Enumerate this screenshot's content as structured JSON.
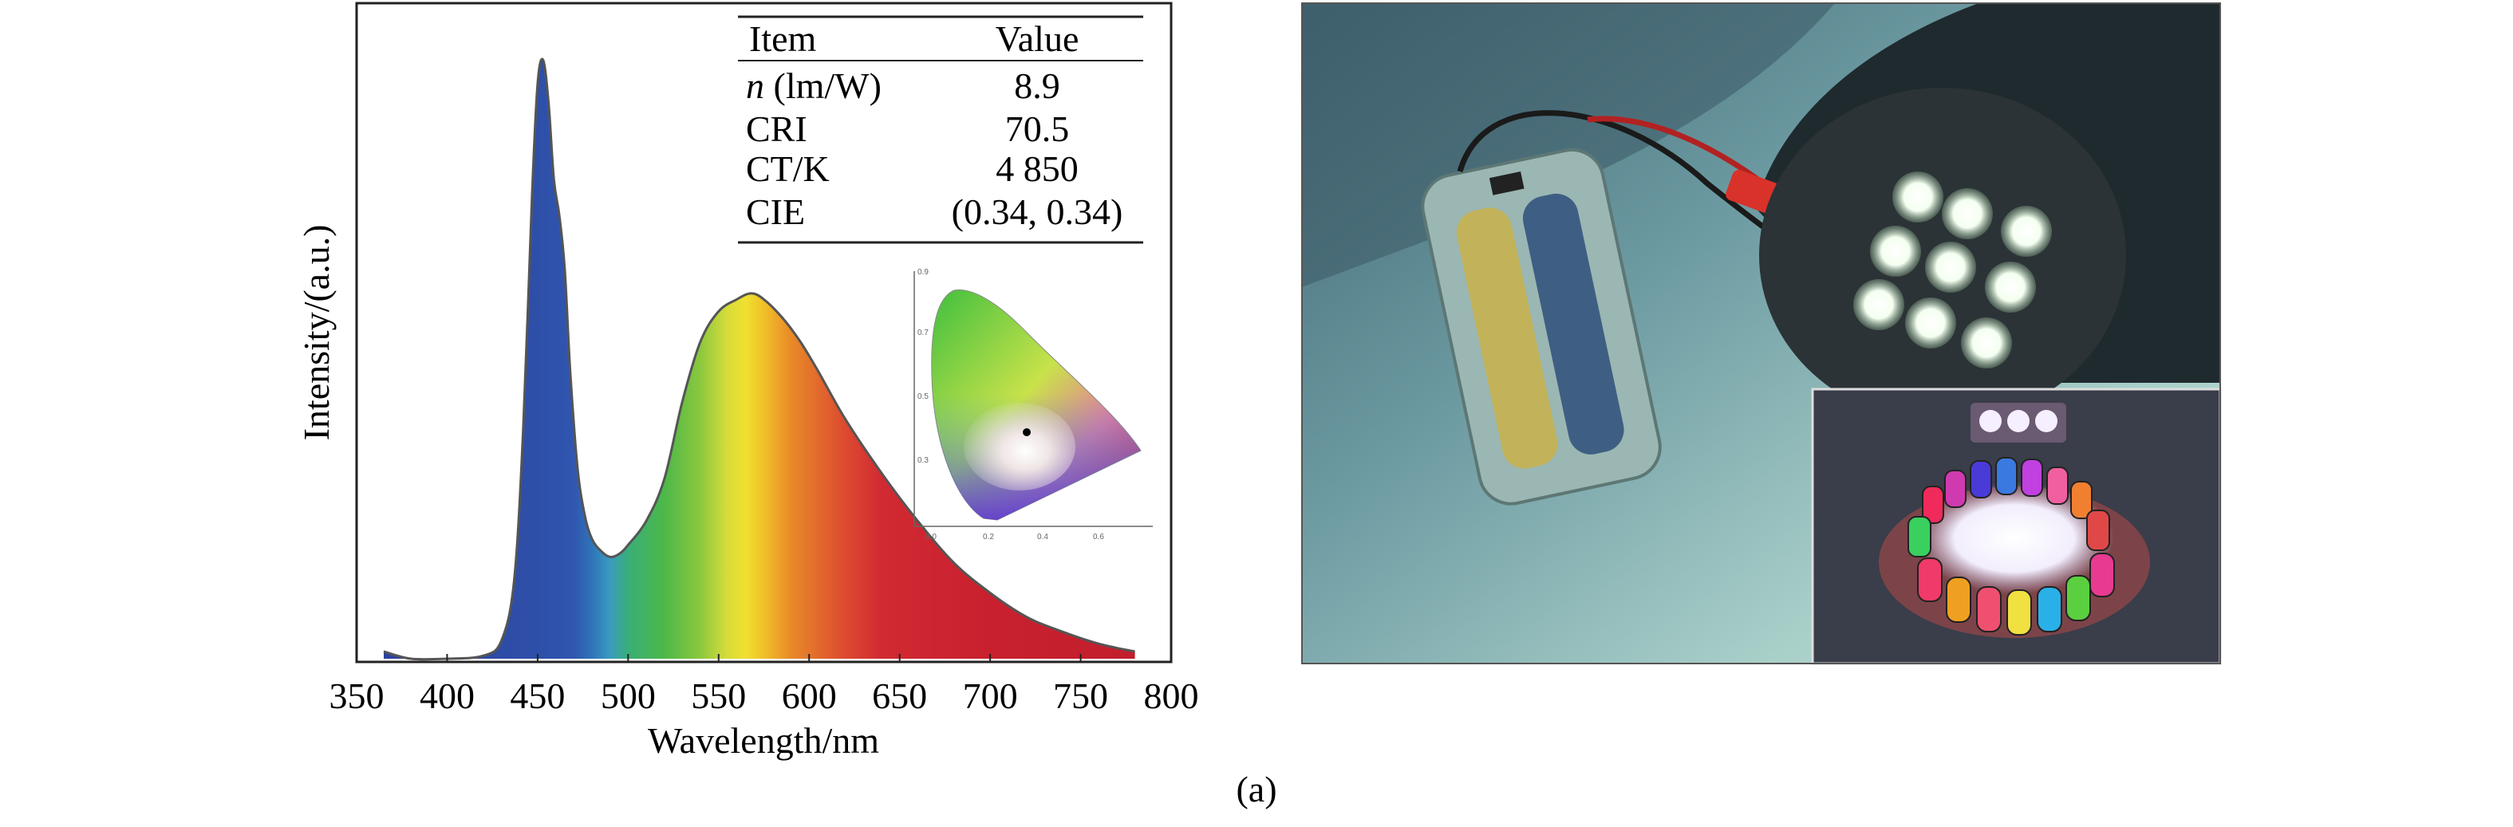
{
  "caption": "(a)",
  "chart_data": {
    "type": "area",
    "xlabel": "Wavelength/nm",
    "ylabel": "Intensity/(a.u.)",
    "xlim": [
      350,
      800
    ],
    "xticks": [
      "350",
      "400",
      "450",
      "500",
      "550",
      "600",
      "650",
      "700",
      "750",
      "800"
    ],
    "grid": false,
    "x": [
      365,
      380,
      400,
      420,
      430,
      437,
      442,
      447,
      450,
      453,
      456,
      459,
      462,
      465,
      468,
      472,
      476,
      480,
      485,
      490,
      495,
      500,
      510,
      520,
      530,
      540,
      550,
      560,
      568,
      575,
      585,
      595,
      605,
      620,
      640,
      660,
      680,
      700,
      720,
      740,
      760,
      780
    ],
    "y": [
      0.012,
      0.0,
      0.0,
      0.005,
      0.03,
      0.13,
      0.38,
      0.78,
      0.96,
      1.0,
      0.93,
      0.8,
      0.74,
      0.65,
      0.48,
      0.32,
      0.24,
      0.2,
      0.18,
      0.17,
      0.175,
      0.19,
      0.23,
      0.3,
      0.43,
      0.53,
      0.58,
      0.6,
      0.61,
      0.6,
      0.57,
      0.53,
      0.48,
      0.4,
      0.31,
      0.23,
      0.16,
      0.11,
      0.07,
      0.045,
      0.025,
      0.012
    ]
  },
  "table": {
    "headers": [
      "Item",
      "Value"
    ],
    "rows": [
      {
        "label_italic": "n",
        "label": " (lm/W)",
        "value": "8.9"
      },
      {
        "label_italic": "",
        "label": "CRI",
        "value": "70.5"
      },
      {
        "label_italic": "",
        "label": "CT/K",
        "value": "4 850"
      },
      {
        "label_italic": "",
        "label": "CIE",
        "value": "(0.34, 0.34)"
      }
    ]
  },
  "cie_inset": {
    "point": [
      0.34,
      0.34
    ]
  },
  "photo": {
    "main": "LED lamp connected to a battery pack",
    "inset": "ring of colored LED lamps"
  },
  "colors": {
    "curve_stroke": "#555555",
    "marker": "#000000"
  }
}
